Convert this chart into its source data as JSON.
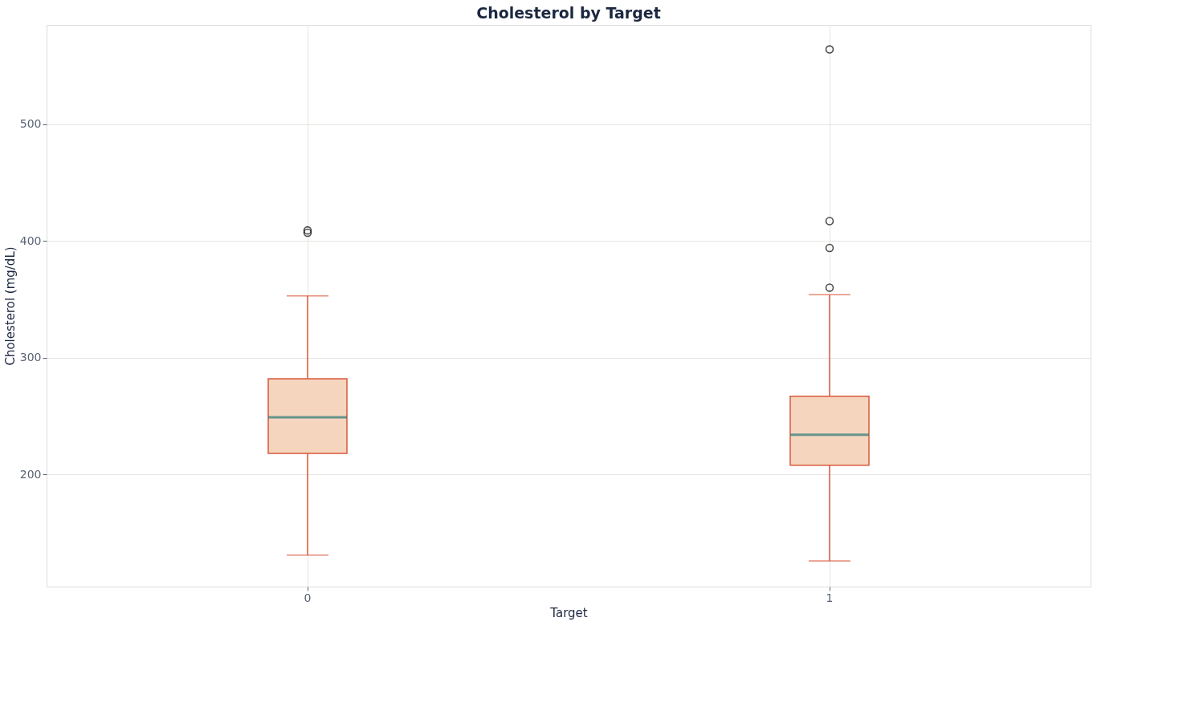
{
  "chart_data": {
    "type": "box",
    "title": "Cholesterol by Target",
    "xlabel": "Target",
    "ylabel": "Cholesterol (mg/dL)",
    "categories": [
      "0",
      "1"
    ],
    "boxes": [
      {
        "low": 131,
        "q1": 218,
        "median": 249,
        "q3": 282,
        "high": 353,
        "outliers": [
          407,
          409
        ]
      },
      {
        "low": 126,
        "q1": 208,
        "median": 234,
        "q3": 267,
        "high": 354,
        "outliers": [
          360,
          394,
          417,
          564
        ]
      }
    ],
    "color": "#d9583b",
    "ylim": [
      104,
      585
    ],
    "yticks": [
      200,
      300,
      400,
      500
    ],
    "grid": true,
    "legend": false
  }
}
